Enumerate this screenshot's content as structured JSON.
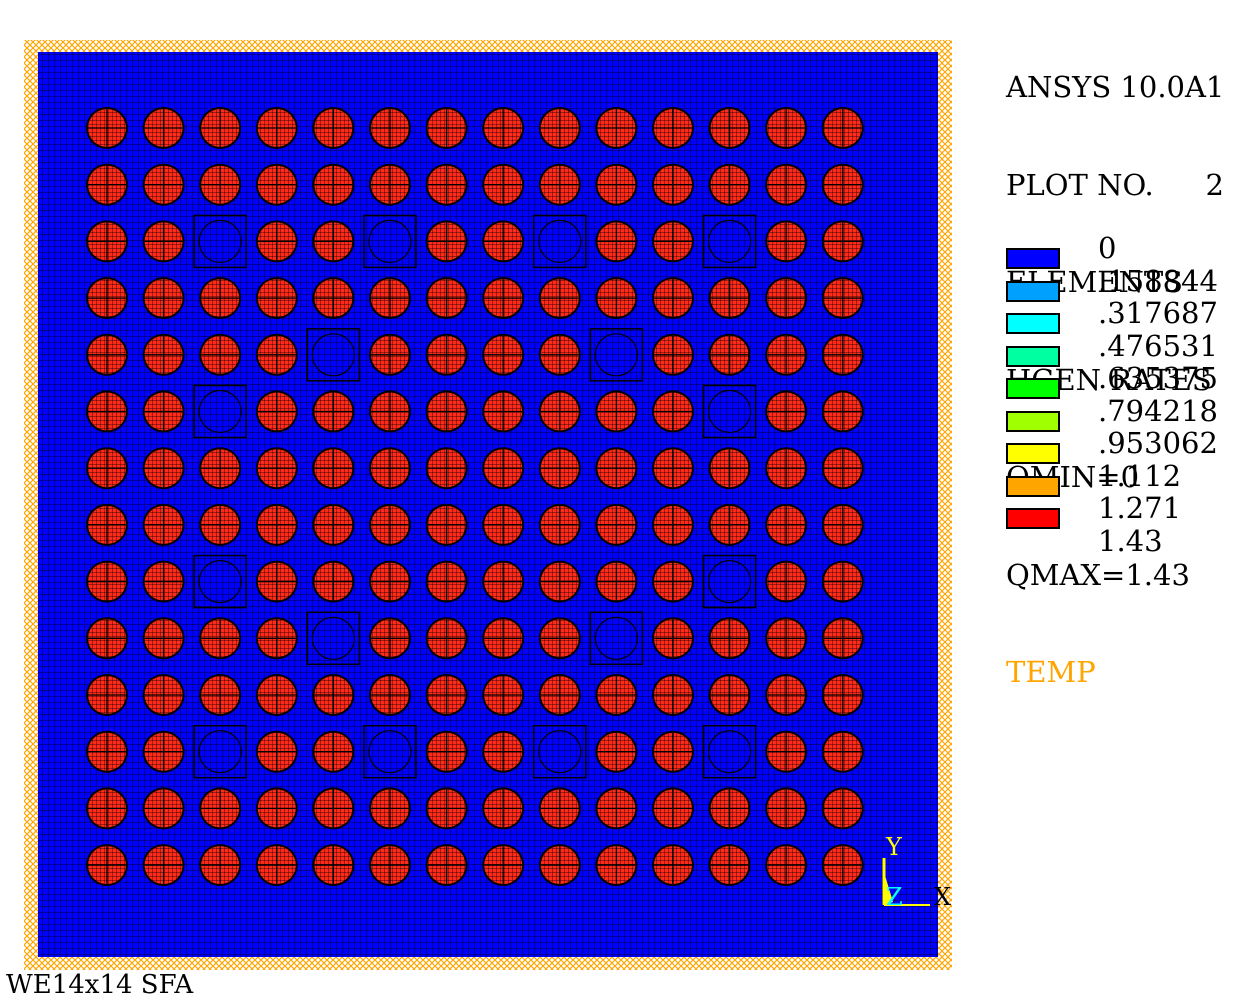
{
  "header": {
    "program": "ANSYS 10.0A1",
    "plot_label": "PLOT NO.",
    "plot_number": "2",
    "entity": "ELEMENTS",
    "quantity": "HGEN RATES",
    "qmin": "QMIN=0",
    "qmax": "QMAX=1.43",
    "legend_title": "TEMP"
  },
  "legend": {
    "values": [
      "0",
      ".158844",
      ".317687",
      ".476531",
      ".635375",
      ".794218",
      ".953062",
      "1.112",
      "1.271",
      "1.43"
    ],
    "colors": [
      "#0000ff",
      "#00a0ff",
      "#00ffff",
      "#00ffa0",
      "#00ff00",
      "#a0ff00",
      "#ffff00",
      "#ffa500",
      "#ff0000"
    ]
  },
  "model": {
    "grid": 14,
    "cylinder_color": "#ff2a1a",
    "matrix_color": "#0000ff",
    "boundary_color": "#ffa500",
    "empty_positions": [
      [
        2,
        2
      ],
      [
        2,
        5
      ],
      [
        2,
        8
      ],
      [
        2,
        11
      ],
      [
        4,
        4
      ],
      [
        4,
        9
      ],
      [
        5,
        2
      ],
      [
        5,
        11
      ],
      [
        8,
        2
      ],
      [
        8,
        11
      ],
      [
        9,
        4
      ],
      [
        9,
        9
      ],
      [
        11,
        2
      ],
      [
        11,
        5
      ],
      [
        11,
        8
      ],
      [
        11,
        11
      ]
    ]
  },
  "triad": {
    "x_label": "X",
    "y_label": "Y",
    "z_label": "Z",
    "axis_color": "#ffff00",
    "z_color": "#00ffff"
  },
  "caption": "WE14x14 SFA"
}
